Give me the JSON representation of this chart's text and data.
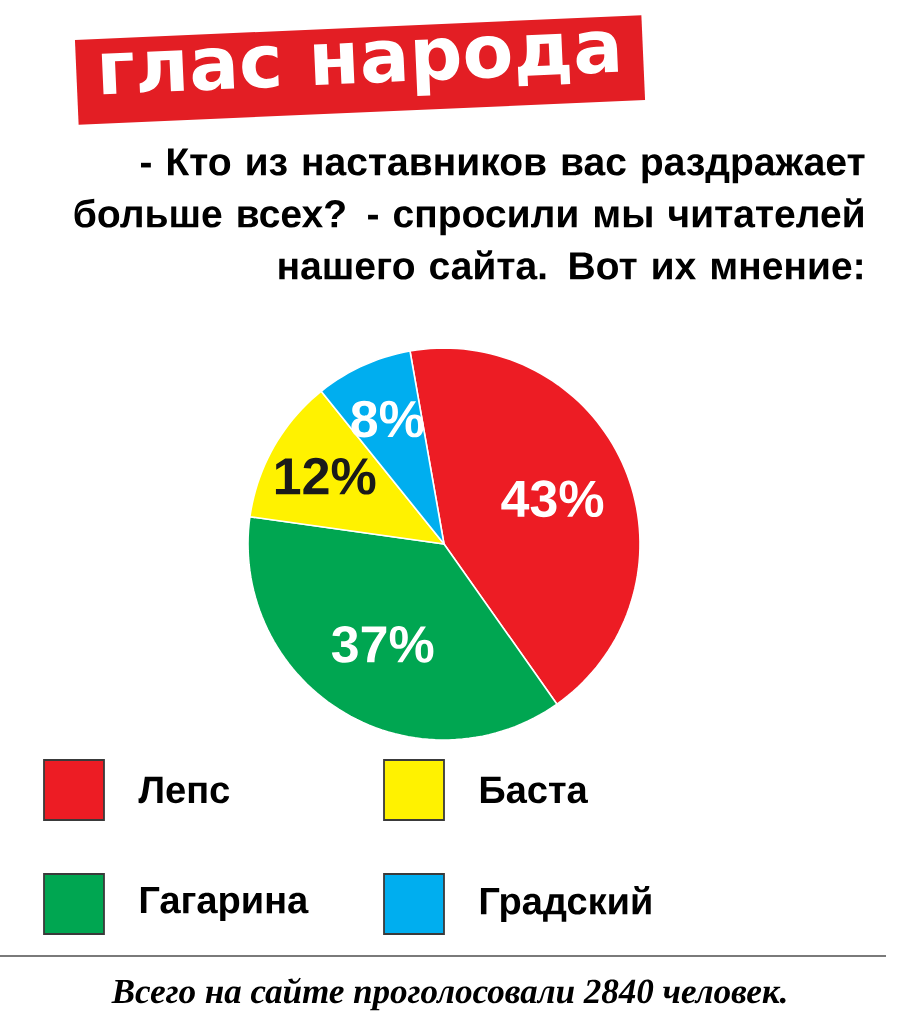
{
  "chart_data": {
    "type": "pie",
    "title": "глас народа",
    "subtitle": "- Кто из наставников вас раздражает больше всех? - спросили мы читателей нашего сайта. Вот их мнение:",
    "categories": [
      "Лепс",
      "Гагарина",
      "Баста",
      "Градский"
    ],
    "values": [
      43,
      37,
      12,
      8
    ],
    "colors": [
      "#ed1c24",
      "#00a651",
      "#fff200",
      "#00aeef"
    ],
    "value_labels": [
      "43%",
      "37%",
      "12%",
      "8%"
    ],
    "legend": "bottom",
    "annotations": [
      "Всего на сайте проголосовали 2840 человек."
    ]
  }
}
